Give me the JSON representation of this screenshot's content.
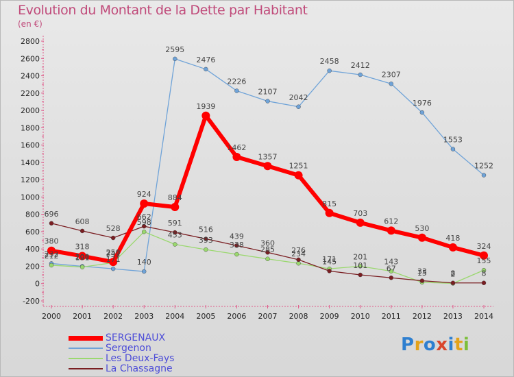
{
  "title": "Evolution du Montant de la Dette par Habitant",
  "unit": "(en €)",
  "logo": {
    "text": "Proxiti",
    "colors": [
      "#2e7fd0",
      "#e3a21a",
      "#2e7fd0",
      "#d9452c",
      "#2e7fd0",
      "#e3a21a",
      "#7cbf3a"
    ]
  },
  "chart_data": {
    "type": "line",
    "title": "Evolution du Montant de la Dette par Habitant",
    "ylabel": "(en €)",
    "xlabel": "",
    "x": [
      "2000",
      "2001",
      "2002",
      "2003",
      "2004",
      "2005",
      "2006",
      "2007",
      "2008",
      "2009",
      "2010",
      "2011",
      "2012",
      "2013",
      "2014"
    ],
    "ylim": [
      -200,
      2800
    ],
    "yticks": [
      "2800",
      "2600",
      "2400",
      "2200",
      "2000",
      "1800",
      "1600",
      "1400",
      "1200",
      "1000",
      "800",
      "600",
      "400",
      "200",
      "0",
      "-200"
    ],
    "grid": false,
    "legend_position": "bottom-left",
    "series": [
      {
        "name": "SERGENAUX",
        "color": "#ff0000",
        "values": [
          380,
          318,
          250,
          924,
          884,
          1939,
          1462,
          1357,
          1251,
          815,
          703,
          612,
          530,
          418,
          324
        ],
        "labels": [
          "380",
          "318",
          "250",
          "924",
          "884",
          "1939",
          "1462",
          "1357",
          "1251",
          "815",
          "703",
          "612",
          "530",
          "418",
          "324"
        ]
      },
      {
        "name": "Sergenon",
        "color": "#6fa3d8",
        "values": [
          232,
          200,
          171,
          140,
          2595,
          2476,
          2226,
          2107,
          2042,
          2458,
          2412,
          2307,
          1976,
          1553,
          1252
        ],
        "labels": [
          "232",
          "200",
          "171",
          "140",
          "2595",
          "2476",
          "2226",
          "2107",
          "2042",
          "2458",
          "2412",
          "2307",
          "1976",
          "1553",
          "1252"
        ]
      },
      {
        "name": "Les Deux-Fays",
        "color": "#9ad86e",
        "values": [
          212,
          191,
          241,
          598,
          453,
          393,
          338,
          285,
          234,
          171,
          201,
          143,
          15,
          2,
          155
        ],
        "labels": [
          "212",
          "191",
          "241",
          "598",
          "453",
          "393",
          "338",
          "285",
          "234",
          "171",
          "201",
          "143",
          "15",
          "2",
          "155"
        ]
      },
      {
        "name": "La Chassagne",
        "color": "#7a1e22",
        "values": [
          696,
          608,
          528,
          662,
          591,
          516,
          439,
          360,
          276,
          145,
          101,
          67,
          33,
          8,
          8
        ],
        "labels": [
          "696",
          "608",
          "528",
          "662",
          "591",
          "516",
          "439",
          "360",
          "276",
          "145",
          "101",
          "67",
          "33",
          "8",
          "8"
        ]
      }
    ]
  }
}
